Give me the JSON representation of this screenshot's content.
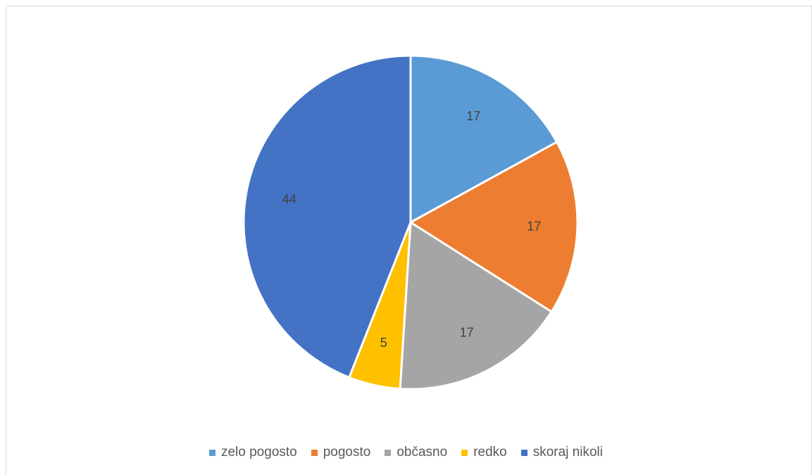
{
  "chart_data": {
    "type": "pie",
    "categories": [
      "zelo pogosto",
      "pogosto",
      "občasno",
      "redko",
      "skoraj nikoli"
    ],
    "values": [
      17,
      17,
      17,
      5,
      44
    ],
    "colors": [
      "#5b9bd5",
      "#ed7d31",
      "#a5a5a5",
      "#ffc000",
      "#4472c4"
    ],
    "data_labels": [
      "17",
      "17",
      "17",
      "5",
      "44"
    ],
    "start_angle": "12 o'clock",
    "direction": "clockwise",
    "legend_position": "bottom"
  }
}
